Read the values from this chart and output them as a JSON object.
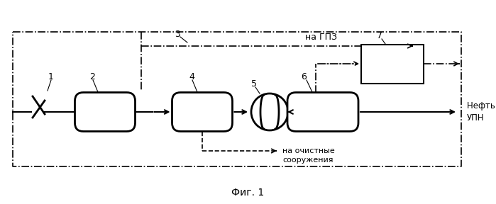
{
  "title": "Фиг. 1",
  "label_gpz": "на ГПЗ",
  "label_oil": "Нефть на\nУПН",
  "label_clean": "на очистные\nсооружения",
  "bg_color": "#ffffff",
  "line_color": "#000000"
}
